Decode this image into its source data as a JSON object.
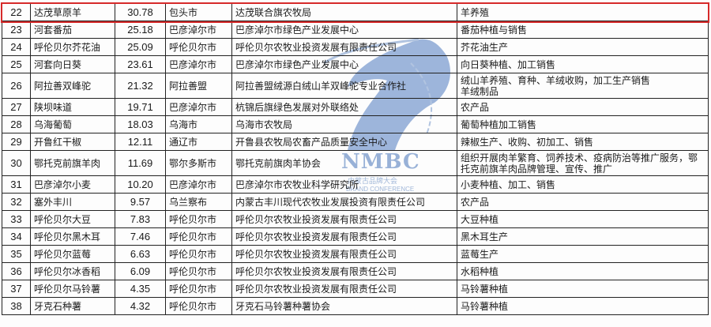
{
  "rows": [
    {
      "no": "22",
      "name": "达茂草原羊",
      "value": "30.78",
      "city": "包头市",
      "org": "达茂联合旗农牧局",
      "business": "羊养殖",
      "highlighted": true
    },
    {
      "no": "23",
      "name": "河套番茄",
      "value": "25.18",
      "city": "巴彦淖尔市",
      "org": "巴彦淖尔市绿色产业发展中心",
      "business": "番茄种植与销售"
    },
    {
      "no": "24",
      "name": "呼伦贝尔芥花油",
      "value": "25.09",
      "city": "呼伦贝尔市",
      "org": "呼伦贝尔农牧业投资发展有限责任公司",
      "business": "芥花油生产"
    },
    {
      "no": "25",
      "name": "河套向日葵",
      "value": "23.61",
      "city": "巴彦淖尔市",
      "org": "巴彦淖尔市绿色产业发展中心",
      "business": "向日葵种植、加工销售"
    },
    {
      "no": "26",
      "name": "阿拉善双峰驼",
      "value": "21.32",
      "city": "阿拉善盟",
      "org": "阿拉善盟绒源白绒山羊双峰驼专业合作社",
      "business": "绒山羊养殖、育种、羊绒收购，加工生产销售\n羊绒制品",
      "tall": true
    },
    {
      "no": "27",
      "name": "陕坝味道",
      "value": "19.71",
      "city": "巴彦淖尔市",
      "org": "杭锦后旗绿色发展对外联络处",
      "business": "农产品"
    },
    {
      "no": "28",
      "name": "乌海葡萄",
      "value": "18.03",
      "city": "乌海市",
      "org": "乌海市农牧局",
      "business": "葡萄种植加工销售"
    },
    {
      "no": "29",
      "name": "开鲁红干椒",
      "value": "12.11",
      "city": "通辽市",
      "org": "开鲁县农牧局农畜产品质量安全中心",
      "business": "辣椒生产、收购、初加工、销售"
    },
    {
      "no": "30",
      "name": "鄂托克前旗羊肉",
      "value": "11.69",
      "city": "鄂尔多斯市",
      "org": "鄂托克前旗肉羊协会",
      "business": "组织开展肉羊繁育、饲养技术、疫病防治等推广服务，鄂托克前旗羊肉品牌管理、宣传、推广",
      "tall": true
    },
    {
      "no": "31",
      "name": "巴彦淖尔小麦",
      "value": "10.20",
      "city": "巴彦淖尔市",
      "org": "巴彦淖尔市农牧业科学研究所",
      "business": "小麦种植、加工、销售"
    },
    {
      "no": "32",
      "name": "塞外丰川",
      "value": "9.57",
      "city": "乌兰察布",
      "org": "内蒙古丰川现代农牧业发展投资有限责任公司",
      "business": "农产品"
    },
    {
      "no": "33",
      "name": "呼伦贝尔大豆",
      "value": "7.83",
      "city": "呼伦贝尔市",
      "org": "呼伦贝尔农牧业投资发展有限责任公司",
      "business": "大豆种植"
    },
    {
      "no": "34",
      "name": "呼伦贝尔黑木耳",
      "value": "7.46",
      "city": "呼伦贝尔市",
      "org": "呼伦贝尔农牧业投资发展有限责任公司",
      "business": "黑木耳生产"
    },
    {
      "no": "35",
      "name": "呼伦贝尔蓝莓",
      "value": "6.63",
      "city": "呼伦贝尔市",
      "org": "呼伦贝尔农牧业投资发展有限责任公司",
      "business": "蓝莓生产"
    },
    {
      "no": "36",
      "name": "呼伦贝尔冰香稻",
      "value": "6.09",
      "city": "呼伦贝尔市",
      "org": "呼伦贝尔农牧业投资发展有限责任公司",
      "business": "水稻种植"
    },
    {
      "no": "37",
      "name": "呼伦贝尔马铃薯",
      "value": "4.35",
      "city": "呼伦贝尔市",
      "org": "呼伦贝尔农牧业投资发展有限责任公司",
      "business": "马铃薯种植"
    },
    {
      "no": "38",
      "name": "牙克石种薯",
      "value": "4.32",
      "city": "呼伦贝尔市",
      "org": "牙克石马铃薯种薯协会",
      "business": "马铃薯种植"
    }
  ],
  "watermark": {
    "title": "NMBC",
    "subtitle_cn": "内蒙古品牌大会",
    "subtitle_en": "BRAND CONFERENCE"
  },
  "colors": {
    "highlight": "#d62a2a",
    "watermark": "#7f9fce"
  }
}
